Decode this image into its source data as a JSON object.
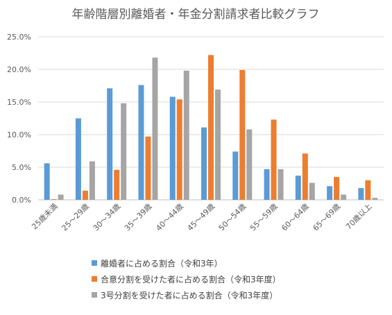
{
  "chart_data": {
    "type": "bar",
    "title": "年齢階層別離婚者・年金分割請求者比較グラフ",
    "xlabel": "",
    "ylabel": "",
    "ylim": [
      0,
      25
    ],
    "yticks": [
      "0.0%",
      "5.0%",
      "10.0%",
      "15.0%",
      "20.0%",
      "25.0%"
    ],
    "grid": true,
    "legend_position": "bottom",
    "categories": [
      "25歳未満",
      "25～29歳",
      "30～34歳",
      "35～39歳",
      "40～44歳",
      "45～49歳",
      "50～54歳",
      "55～59歳",
      "60～64歳",
      "65～69歳",
      "70歳以上"
    ],
    "series": [
      {
        "name": "離婚者に占める割合（令和3年）",
        "color": "#5B9BD5",
        "values": [
          5.6,
          12.5,
          17.1,
          17.6,
          15.8,
          11.1,
          7.4,
          4.7,
          3.7,
          2.1,
          1.8
        ]
      },
      {
        "name": "合意分割を受けた者に占める割合（令和3年度）",
        "color": "#ED7D31",
        "values": [
          0.1,
          1.4,
          4.6,
          9.7,
          15.4,
          22.2,
          19.9,
          12.3,
          7.1,
          3.5,
          3.0
        ]
      },
      {
        "name": "3号分割を受けた者に占める割合（令和3年度）",
        "color": "#A5A5A5",
        "values": [
          0.8,
          5.9,
          14.8,
          21.8,
          19.8,
          16.9,
          10.8,
          4.7,
          2.6,
          0.8,
          0.3
        ]
      }
    ]
  }
}
